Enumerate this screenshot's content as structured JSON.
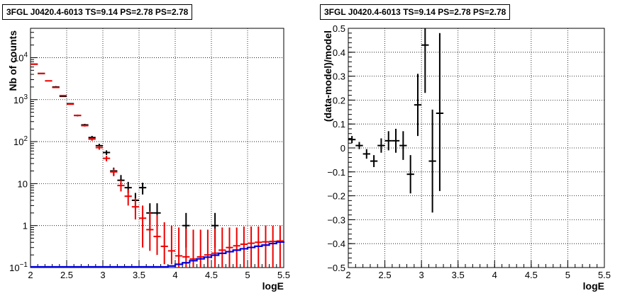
{
  "chart_data": [
    {
      "type": "scatter",
      "title": "3FGL J0420.4-6013 TS=9.14 PS=2.78 PS=2.78",
      "xlabel": "logE",
      "ylabel": "Nb of counts",
      "xlim": [
        2,
        5.5
      ],
      "ylim": [
        0.1,
        50000
      ],
      "yscale": "log",
      "x_ticks": [
        "2",
        "2.5",
        "3",
        "3.5",
        "4",
        "4.5",
        "5",
        "5.5"
      ],
      "y_ticks": [
        {
          "value": 0.1,
          "base": "10",
          "exp": "−1"
        },
        {
          "value": 1,
          "base": "1",
          "exp": ""
        },
        {
          "value": 10,
          "base": "10",
          "exp": ""
        },
        {
          "value": 100,
          "base": "10",
          "exp": "2"
        },
        {
          "value": 1000,
          "base": "10",
          "exp": "3"
        },
        {
          "value": 10000,
          "base": "10",
          "exp": "4"
        }
      ],
      "grid": true,
      "series": [
        {
          "color": "#000000",
          "style": "errorbar",
          "points": [
            {
              "x": 2.05,
              "y": 7000,
              "lo": 6900,
              "hi": 7100
            },
            {
              "x": 2.15,
              "y": 4200,
              "lo": 4150,
              "hi": 4250
            },
            {
              "x": 2.35,
              "y": 2000,
              "lo": 1900,
              "hi": 2100
            },
            {
              "x": 2.45,
              "y": 1200,
              "lo": 1160,
              "hi": 1240
            },
            {
              "x": 2.55,
              "y": 800,
              "lo": 770,
              "hi": 830
            },
            {
              "x": 2.65,
              "y": 420,
              "lo": 400,
              "hi": 440
            },
            {
              "x": 2.75,
              "y": 250,
              "lo": 235,
              "hi": 265
            },
            {
              "x": 2.85,
              "y": 125,
              "lo": 113,
              "hi": 137
            },
            {
              "x": 2.95,
              "y": 80,
              "lo": 71,
              "hi": 89
            },
            {
              "x": 3.05,
              "y": 55,
              "lo": 48,
              "hi": 62
            },
            {
              "x": 3.15,
              "y": 20,
              "lo": 16,
              "hi": 24
            },
            {
              "x": 3.25,
              "y": 12,
              "lo": 9,
              "hi": 16
            },
            {
              "x": 3.35,
              "y": 8,
              "lo": 6,
              "hi": 11
            },
            {
              "x": 3.45,
              "y": 4,
              "lo": 2.5,
              "hi": 6
            },
            {
              "x": 3.55,
              "y": 8,
              "lo": 5.5,
              "hi": 10.5
            },
            {
              "x": 3.65,
              "y": 2,
              "lo": 0.8,
              "hi": 3.4
            },
            {
              "x": 3.75,
              "y": 2,
              "lo": 0.8,
              "hi": 3.4
            },
            {
              "x": 4.15,
              "y": 1,
              "lo": 0.3,
              "hi": 2
            },
            {
              "x": 4.55,
              "y": 1,
              "lo": 0.3,
              "hi": 2
            }
          ]
        },
        {
          "color": "#ee0000",
          "style": "errorbar",
          "points": [
            {
              "x": 2.05,
              "y": 7000,
              "lo": 6900,
              "hi": 7100
            },
            {
              "x": 2.15,
              "y": 4200,
              "lo": 4150,
              "hi": 4250
            },
            {
              "x": 2.25,
              "y": 2800,
              "lo": 2750,
              "hi": 2850
            },
            {
              "x": 2.35,
              "y": 1950,
              "lo": 1900,
              "hi": 2000
            },
            {
              "x": 2.45,
              "y": 1250,
              "lo": 1220,
              "hi": 1280
            },
            {
              "x": 2.55,
              "y": 780,
              "lo": 760,
              "hi": 800
            },
            {
              "x": 2.65,
              "y": 420,
              "lo": 405,
              "hi": 435
            },
            {
              "x": 2.75,
              "y": 240,
              "lo": 228,
              "hi": 252
            },
            {
              "x": 2.85,
              "y": 115,
              "lo": 105,
              "hi": 125
            },
            {
              "x": 2.95,
              "y": 72,
              "lo": 64,
              "hi": 80
            },
            {
              "x": 3.05,
              "y": 40,
              "lo": 34,
              "hi": 46
            },
            {
              "x": 3.15,
              "y": 19,
              "lo": 15,
              "hi": 23
            },
            {
              "x": 3.25,
              "y": 9,
              "lo": 6.5,
              "hi": 12
            },
            {
              "x": 3.35,
              "y": 5,
              "lo": 3,
              "hi": 7.2
            },
            {
              "x": 3.45,
              "y": 2.8,
              "lo": 1.4,
              "hi": 4.5
            },
            {
              "x": 3.55,
              "y": 1.5,
              "lo": 0.3,
              "hi": 3
            },
            {
              "x": 3.65,
              "y": 0.8,
              "lo": 0.25,
              "hi": 2.2
            },
            {
              "x": 3.75,
              "y": 0.55,
              "lo": 0.2,
              "hi": 1.8
            },
            {
              "x": 3.85,
              "y": 0.32,
              "lo": 0.12,
              "hi": 1.2
            },
            {
              "x": 3.95,
              "y": 0.25,
              "lo": 0.12,
              "hi": 1.0
            },
            {
              "x": 4.05,
              "y": 0.19,
              "lo": 0.1,
              "hi": 0.9
            },
            {
              "x": 4.15,
              "y": 0.18,
              "lo": 0.1,
              "hi": 0.85
            },
            {
              "x": 4.25,
              "y": 0.16,
              "lo": 0.1,
              "hi": 0.8
            },
            {
              "x": 4.35,
              "y": 0.18,
              "lo": 0.1,
              "hi": 0.8
            },
            {
              "x": 4.45,
              "y": 0.2,
              "lo": 0.1,
              "hi": 0.8
            },
            {
              "x": 4.55,
              "y": 0.22,
              "lo": 0.1,
              "hi": 0.85
            },
            {
              "x": 4.65,
              "y": 0.26,
              "lo": 0.1,
              "hi": 0.9
            },
            {
              "x": 4.75,
              "y": 0.3,
              "lo": 0.1,
              "hi": 0.9
            },
            {
              "x": 4.85,
              "y": 0.33,
              "lo": 0.1,
              "hi": 0.9
            },
            {
              "x": 4.95,
              "y": 0.36,
              "lo": 0.1,
              "hi": 0.95
            },
            {
              "x": 5.05,
              "y": 0.38,
              "lo": 0.1,
              "hi": 0.95
            },
            {
              "x": 5.15,
              "y": 0.4,
              "lo": 0.1,
              "hi": 0.95
            },
            {
              "x": 5.25,
              "y": 0.41,
              "lo": 0.1,
              "hi": 1.0
            },
            {
              "x": 5.35,
              "y": 0.42,
              "lo": 0.1,
              "hi": 1.0
            },
            {
              "x": 5.45,
              "y": 0.43,
              "lo": 0.1,
              "hi": 1.0
            }
          ]
        },
        {
          "color": "#0000dd",
          "style": "step",
          "x": [
            2.0,
            3.5,
            3.6,
            3.7,
            3.8,
            3.9,
            4.0,
            4.1,
            4.2,
            4.3,
            4.4,
            4.5,
            4.6,
            4.7,
            4.8,
            4.9,
            5.0,
            5.1,
            5.2,
            5.3,
            5.4,
            5.5
          ],
          "y": [
            0.1,
            0.1,
            0.1,
            0.1,
            0.1,
            0.105,
            0.115,
            0.125,
            0.14,
            0.155,
            0.17,
            0.19,
            0.21,
            0.23,
            0.25,
            0.27,
            0.29,
            0.31,
            0.33,
            0.36,
            0.39,
            0.4
          ]
        }
      ]
    },
    {
      "type": "scatter",
      "title": "3FGL J0420.4-6013 TS=9.14 PS=2.78 PS=2.78",
      "xlabel": "logE",
      "ylabel": "(data-model)/model",
      "xlim": [
        2,
        5.5
      ],
      "ylim": [
        -0.5,
        0.5
      ],
      "x_ticks": [
        "2",
        "2.5",
        "3",
        "3.5",
        "4",
        "4.5",
        "5",
        "5.5"
      ],
      "y_ticks": [
        "−0.5",
        "−0.4",
        "−0.3",
        "−0.2",
        "−0.1",
        "0",
        "0.1",
        "0.2",
        "0.3",
        "0.4",
        "0.5"
      ],
      "grid": true,
      "series": [
        {
          "color": "#000000",
          "style": "errorbar",
          "points": [
            {
              "x": 2.05,
              "y": 0.035,
              "lo": 0.02,
              "hi": 0.05
            },
            {
              "x": 2.15,
              "y": 0.01,
              "lo": -0.005,
              "hi": 0.025
            },
            {
              "x": 2.25,
              "y": -0.025,
              "lo": -0.045,
              "hi": -0.005
            },
            {
              "x": 2.35,
              "y": -0.055,
              "lo": -0.08,
              "hi": -0.03
            },
            {
              "x": 2.45,
              "y": 0.01,
              "lo": -0.02,
              "hi": 0.04
            },
            {
              "x": 2.55,
              "y": 0.03,
              "lo": -0.01,
              "hi": 0.07
            },
            {
              "x": 2.65,
              "y": 0.03,
              "lo": -0.02,
              "hi": 0.08
            },
            {
              "x": 2.75,
              "y": 0.01,
              "lo": -0.05,
              "hi": 0.07
            },
            {
              "x": 2.85,
              "y": -0.11,
              "lo": -0.19,
              "hi": -0.03
            },
            {
              "x": 2.95,
              "y": 0.18,
              "lo": 0.05,
              "hi": 0.31
            },
            {
              "x": 3.05,
              "y": 0.43,
              "lo": 0.23,
              "hi": 0.5
            },
            {
              "x": 3.15,
              "y": -0.055,
              "lo": -0.27,
              "hi": 0.16
            },
            {
              "x": 3.25,
              "y": 0.145,
              "lo": -0.18,
              "hi": 0.48
            }
          ]
        }
      ]
    }
  ]
}
